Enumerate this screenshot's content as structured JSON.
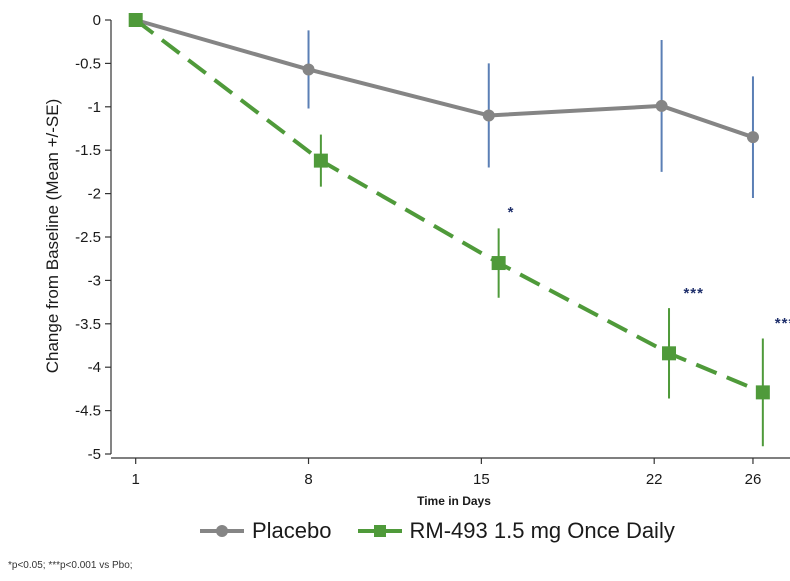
{
  "chart_data": {
    "type": "line",
    "xlabel": "Time in Days",
    "ylabel": "Change from Baseline (Mean +/-SE)",
    "x_ticks": [
      1,
      8,
      15,
      22,
      26
    ],
    "x_tick_labels": [
      "1",
      "8",
      "15",
      "22",
      "26"
    ],
    "xlim": [
      0,
      27.5
    ],
    "ylim": [
      -5,
      0
    ],
    "y_ticks": [
      0,
      -0.5,
      -1,
      -1.5,
      -2,
      -2.5,
      -3,
      -3.5,
      -4,
      -4.5,
      -5
    ],
    "y_tick_labels": [
      "0",
      "-0.5",
      "-1",
      "-1.5",
      "-2",
      "-2.5",
      "-3",
      "-3.5",
      "-4",
      "-4.5",
      "-5"
    ],
    "grid": false,
    "legend_position": "bottom",
    "series": [
      {
        "name": "Placebo",
        "color": "#858585",
        "errorbar_color": "#5b7fb5",
        "marker": "circle",
        "line_style": "solid",
        "x": [
          1,
          8,
          15.3,
          22.3,
          26
        ],
        "y": [
          0,
          -0.57,
          -1.1,
          -0.99,
          -1.35
        ],
        "se": [
          0,
          0.45,
          0.6,
          0.76,
          0.7
        ]
      },
      {
        "name": "RM-493 1.5 mg Once Daily",
        "color": "#4f9a3a",
        "errorbar_color": "#4f9a3a",
        "marker": "square",
        "line_style": "dashed",
        "x": [
          1,
          8.5,
          15.7,
          22.6,
          26.4
        ],
        "y": [
          0,
          -1.62,
          -2.8,
          -3.84,
          -4.29
        ],
        "se": [
          0,
          0.3,
          0.4,
          0.52,
          0.62
        ]
      }
    ],
    "annotations": [
      {
        "x": 16.2,
        "y": -2.27,
        "text": "*"
      },
      {
        "x": 23.6,
        "y": -3.2,
        "text": "***"
      },
      {
        "x": 27.3,
        "y": -3.55,
        "text": "***"
      }
    ]
  },
  "footnote": "*p<0.05; ***p<0.001 vs Pbo;"
}
